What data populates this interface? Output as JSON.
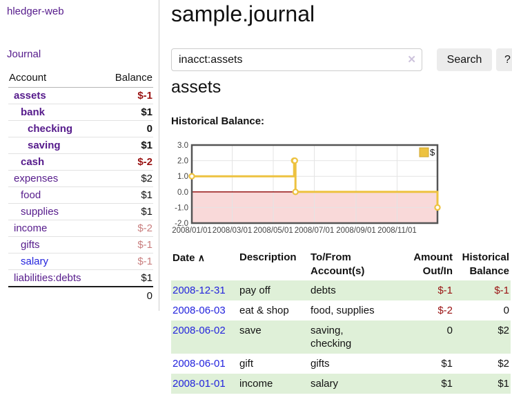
{
  "colors": {
    "link_purple": "#551a8b",
    "link_blue": "#2323dd",
    "negative_dark": "#991111",
    "negative_faded": "#c97f7f",
    "row_stripe_green": "#dff0d8",
    "chart_series_gold": "#edc240",
    "chart_negative_fill": "#f9d9d9",
    "chart_zero_line": "#8b0000",
    "chart_border": "#545454",
    "button_bg": "#ececec"
  },
  "sidebar": {
    "app_title": "hledger-web",
    "journal_link": "Journal",
    "account_header": "Account",
    "balance_header": "Balance",
    "accounts": [
      {
        "label": "assets",
        "depth": 0,
        "bold": true,
        "neg": true,
        "balance": "$-1"
      },
      {
        "label": "bank",
        "depth": 1,
        "bold": true,
        "neg": false,
        "balance": "$1"
      },
      {
        "label": "checking",
        "depth": 2,
        "bold": true,
        "neg": false,
        "balance": "0"
      },
      {
        "label": "saving",
        "depth": 2,
        "bold": true,
        "neg": false,
        "balance": "$1"
      },
      {
        "label": "cash",
        "depth": 1,
        "bold": true,
        "neg": true,
        "balance": "$-2"
      },
      {
        "label": "expenses",
        "depth": 0,
        "bold": false,
        "neg": false,
        "balance": "$2"
      },
      {
        "label": "food",
        "depth": 1,
        "bold": false,
        "neg": false,
        "balance": "$1"
      },
      {
        "label": "supplies",
        "depth": 1,
        "bold": false,
        "neg": false,
        "balance": "$1"
      },
      {
        "label": "income",
        "depth": 0,
        "bold": false,
        "neg": true,
        "balance": "$-2"
      },
      {
        "label": "gifts",
        "depth": 1,
        "bold": false,
        "neg": true,
        "balance": "$-1"
      },
      {
        "label": "salary",
        "depth": 1,
        "bold": false,
        "neg": true,
        "balance": "$-1",
        "blue": true
      },
      {
        "label": "liabilities:debts",
        "depth": 0,
        "bold": false,
        "neg": false,
        "balance": "$1"
      }
    ],
    "total": "0"
  },
  "main": {
    "title": "sample.journal",
    "search": {
      "value": "inacct:assets",
      "clear_icon": "✕",
      "search_label": "Search",
      "help_label": "?"
    },
    "account_heading": "assets",
    "chart_label": "Historical Balance:"
  },
  "chart_data": {
    "type": "line",
    "subtype": "step",
    "title": "Historical Balance",
    "legend": "$",
    "legend_position": "top-right",
    "grid": true,
    "x_range": [
      "2008/01/01",
      "2008/12/31"
    ],
    "ylim": [
      -2.0,
      3.0
    ],
    "y_tick_labels": [
      "3.0",
      "2.0",
      "1.0",
      "0.0",
      "-1.0",
      "-2.0"
    ],
    "x_tick_labels": [
      "2008/01/01",
      "2008/03/01",
      "2008/05/01",
      "2008/07/01",
      "2008/09/01",
      "2008/11/01"
    ],
    "series": [
      {
        "name": "$",
        "color": "#edc240",
        "points": [
          {
            "x": "2008/01/01",
            "y": 1
          },
          {
            "x": "2008/06/01",
            "y": 2
          },
          {
            "x": "2008/06/02",
            "y": 2
          },
          {
            "x": "2008/06/03",
            "y": 0
          },
          {
            "x": "2008/12/31",
            "y": -1
          }
        ]
      }
    ]
  },
  "transactions": {
    "headers": {
      "date": "Date",
      "sort_icon": "∧",
      "description": "Description",
      "tofrom_line1": "To/From",
      "tofrom_line2": "Account(s)",
      "amount_line1": "Amount",
      "amount_line2": "Out/In",
      "balance_line1": "Historical",
      "balance_line2": "Balance"
    },
    "rows": [
      {
        "date": "2008-12-31",
        "description": "pay off",
        "accounts": "debts",
        "amount": "$-1",
        "amount_neg": true,
        "balance": "$-1",
        "balance_neg": true,
        "wrap": false
      },
      {
        "date": "2008-06-03",
        "description": "eat & shop",
        "accounts": "food, supplies",
        "amount": "$-2",
        "amount_neg": true,
        "balance": "0",
        "balance_neg": false,
        "wrap": false
      },
      {
        "date": "2008-06-02",
        "description": "save",
        "accounts": "saving, checking",
        "amount": "0",
        "amount_neg": false,
        "balance": "$2",
        "balance_neg": false,
        "wrap": true
      },
      {
        "date": "2008-06-01",
        "description": "gift",
        "accounts": "gifts",
        "amount": "$1",
        "amount_neg": false,
        "balance": "$2",
        "balance_neg": false,
        "wrap": false
      },
      {
        "date": "2008-01-01",
        "description": "income",
        "accounts": "salary",
        "amount": "$1",
        "amount_neg": false,
        "balance": "$1",
        "balance_neg": false,
        "wrap": false
      }
    ]
  }
}
